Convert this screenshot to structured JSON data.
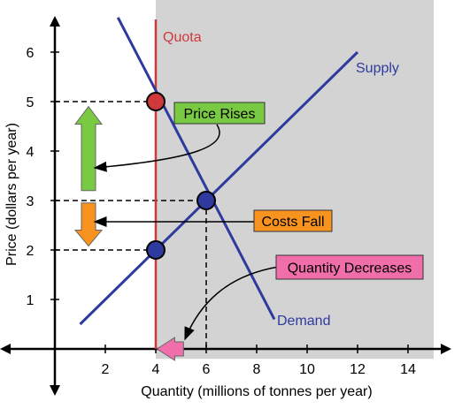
{
  "colors": {
    "curve": "#2E3A9E",
    "quota": "#D0393B",
    "shade": "#D3D3D3",
    "green": "#7AC943",
    "orange": "#F7931E",
    "pink": "#F06EAA",
    "red_point": "#D0393B",
    "blue_point": "#2E3A9E"
  },
  "chart_data": {
    "type": "line",
    "xlabel": "Quantity (millions of tonnes per year)",
    "ylabel": "Price (dollars per year)",
    "xlim": [
      -2,
      15.5
    ],
    "ylim": [
      -1,
      6.6
    ],
    "x_ticks": [
      2,
      4,
      6,
      8,
      10,
      12,
      14
    ],
    "y_ticks": [
      1,
      2,
      3,
      4,
      5,
      6
    ],
    "grid": false,
    "series": [
      {
        "name": "Supply",
        "points": [
          [
            1,
            0.5
          ],
          [
            12,
            6
          ]
        ]
      },
      {
        "name": "Demand",
        "points": [
          [
            2.5,
            6.7
          ],
          [
            8.7,
            0.6
          ]
        ]
      }
    ],
    "quota": {
      "label": "Quota",
      "x": 4
    },
    "points": [
      {
        "x": 4,
        "y": 5,
        "color": "red"
      },
      {
        "x": 6,
        "y": 3,
        "color": "blue"
      },
      {
        "x": 4,
        "y": 2,
        "color": "blue"
      }
    ],
    "annotations": [
      {
        "text": "Price Rises"
      },
      {
        "text": "Costs Fall"
      },
      {
        "text": "Quantity Decreases"
      }
    ]
  }
}
